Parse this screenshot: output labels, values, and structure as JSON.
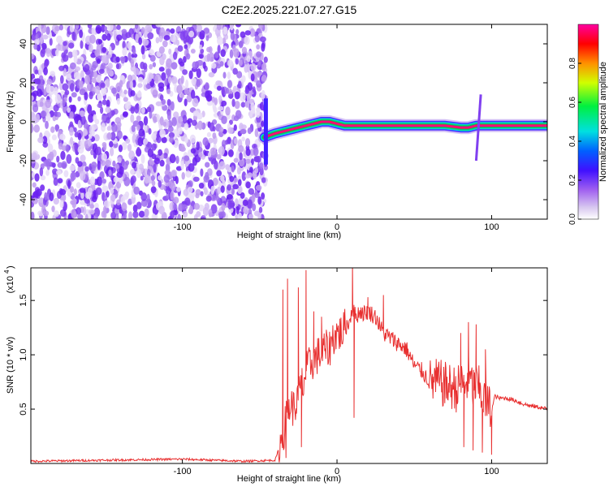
{
  "title": "C2E2.2025.221.07.27.G15",
  "chart_data": [
    {
      "type": "heatmap",
      "xlabel": "Height of straight line (km)",
      "ylabel": "Frequency (Hz)",
      "xlim": [
        -198,
        136
      ],
      "ylim": [
        -50,
        50
      ],
      "x_ticks": [
        -100,
        0,
        100
      ],
      "y_ticks": [
        -40,
        -20,
        0,
        20,
        40
      ],
      "colorbar": {
        "label": "Normalized spectral amplitude",
        "range": [
          0,
          1
        ],
        "ticks": [
          "0.0",
          "0.2",
          "0.4",
          "0.6",
          "0.8"
        ],
        "tick_values": [
          0.0,
          0.2,
          0.4,
          0.6,
          0.8
        ],
        "colors": [
          "#ffffff",
          "#c8a8f0",
          "#9040f0",
          "#3020ff",
          "#00d0ff",
          "#00ff40",
          "#ffff00",
          "#ff8000",
          "#ff0000",
          "#ff00a0"
        ]
      },
      "noise_region_x": [
        -198,
        -46
      ],
      "signal_trace": {
        "x": [
          -47,
          -40,
          -30,
          -20,
          -10,
          -5,
          0,
          5,
          10,
          20,
          40,
          60,
          70,
          80,
          85,
          90,
          95,
          100,
          110,
          120,
          136
        ],
        "frequency": [
          -8,
          -6,
          -4,
          -2,
          0,
          0,
          -1,
          -2,
          -2,
          -2,
          -2,
          -2,
          -2,
          -3,
          -3,
          -2,
          -2,
          -2,
          -2,
          -2,
          -2
        ]
      }
    },
    {
      "type": "line",
      "xlabel": "Height of straight line (km)",
      "ylabel": "SNR (10 * v/v)",
      "y_multiplier": "(x10",
      "y_multiplier_exp": "4",
      "xlim": [
        -198,
        136
      ],
      "ylim": [
        0,
        1.8
      ],
      "x_ticks": [
        -100,
        0,
        100
      ],
      "y_ticks": [
        0.5,
        1.0,
        1.5
      ],
      "y_tick_labels": [
        "0.5",
        "1.0",
        "1.5"
      ],
      "color": "#e83030",
      "series": [
        {
          "x": [
            -198,
            -150,
            -100,
            -80,
            -60,
            -40,
            -35,
            -33,
            -30,
            -28,
            -25,
            -23,
            -22,
            -20,
            -18,
            -15,
            -12,
            -10,
            -8,
            -5,
            -3,
            0,
            3,
            5,
            8,
            10,
            12,
            15,
            18,
            20,
            25,
            30,
            35,
            40,
            45,
            50,
            55,
            60,
            65,
            70,
            75,
            78,
            80,
            82,
            85,
            88,
            90,
            92,
            95,
            97,
            100,
            102,
            105,
            110,
            115,
            120,
            125,
            130,
            136
          ],
          "y": [
            0.02,
            0.03,
            0.04,
            0.03,
            0.02,
            0.03,
            0.25,
            0.4,
            0.55,
            0.5,
            0.6,
            0.75,
            0.7,
            0.85,
            0.9,
            0.95,
            1.0,
            1.0,
            1.05,
            1.05,
            1.15,
            1.2,
            1.2,
            1.25,
            1.3,
            1.45,
            1.35,
            1.4,
            1.38,
            1.4,
            1.35,
            1.2,
            1.15,
            1.1,
            1.05,
            0.9,
            0.85,
            0.75,
            0.75,
            0.72,
            0.7,
            0.68,
            0.75,
            0.7,
            0.78,
            0.7,
            0.72,
            0.68,
            0.6,
            0.55,
            0.48,
            0.62,
            0.6,
            0.6,
            0.58,
            0.55,
            0.53,
            0.52,
            0.5
          ]
        }
      ],
      "spikes": [
        {
          "x": -35,
          "y": 1.6
        },
        {
          "x": -33,
          "y": 0.05
        },
        {
          "x": -32,
          "y": 1.7
        },
        {
          "x": -25,
          "y": 1.62
        },
        {
          "x": -23,
          "y": 0.15
        },
        {
          "x": -20,
          "y": 1.78
        },
        {
          "x": -15,
          "y": 1.4
        },
        {
          "x": -10,
          "y": 1.35
        },
        {
          "x": 10,
          "y": 1.85
        },
        {
          "x": 11,
          "y": 0.42
        },
        {
          "x": 20,
          "y": 1.53
        },
        {
          "x": 30,
          "y": 1.55
        },
        {
          "x": 80,
          "y": 1.2
        },
        {
          "x": 82,
          "y": 0.15
        },
        {
          "x": 85,
          "y": 1.3
        },
        {
          "x": 88,
          "y": 0.12
        },
        {
          "x": 90,
          "y": 1.28
        },
        {
          "x": 94,
          "y": 0.1
        },
        {
          "x": 96,
          "y": 1.05
        },
        {
          "x": 100,
          "y": 0.08
        }
      ]
    }
  ]
}
